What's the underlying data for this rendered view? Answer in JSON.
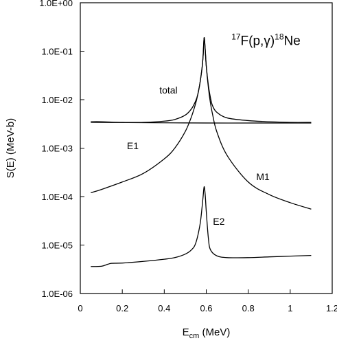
{
  "chart_data": {
    "type": "line",
    "title": {
      "pre": "17",
      "a": "F(p,",
      "gamma": "γ",
      "b": ")",
      "post": "18",
      "c": "Ne"
    },
    "ylabel": "S(E) (MeV-b)",
    "xlabel": {
      "main": "E",
      "sub": "cm",
      "rest": " (MeV)"
    },
    "x_scale": "linear",
    "y_scale": "log",
    "xlim": [
      0,
      1.2
    ],
    "ylim": [
      1e-06,
      1
    ],
    "x_ticks": [
      0,
      0.2,
      0.4,
      0.6,
      0.8,
      1,
      1.2
    ],
    "x_tick_labels": [
      "0",
      "0.2",
      "0.4",
      "0.6",
      "0.8",
      "1",
      "1.2"
    ],
    "y_ticks": [
      1e-06,
      1e-05,
      0.0001,
      0.001,
      0.01,
      0.1,
      1
    ],
    "y_tick_labels": [
      "1.0E-06",
      "1.0E-05",
      "1.0E-04",
      "1.0E-03",
      "1.0E-02",
      "1.0E-01",
      "1.0E+00"
    ],
    "grid": false,
    "series": [
      {
        "name": "total",
        "x": [
          0.05,
          0.1,
          0.2,
          0.3,
          0.4,
          0.45,
          0.5,
          0.53,
          0.55,
          0.56,
          0.57,
          0.58,
          0.585,
          0.59,
          0.595,
          0.6,
          0.61,
          0.62,
          0.63,
          0.65,
          0.7,
          0.8,
          0.9,
          1.0,
          1.1
        ],
        "y": [
          0.0035,
          0.0035,
          0.0034,
          0.0034,
          0.0036,
          0.0039,
          0.0048,
          0.0065,
          0.0095,
          0.013,
          0.022,
          0.045,
          0.08,
          0.19,
          0.11,
          0.05,
          0.02,
          0.011,
          0.0075,
          0.0055,
          0.0042,
          0.0037,
          0.0035,
          0.0034,
          0.0034
        ]
      },
      {
        "name": "E1",
        "x": [
          0.05,
          0.3,
          0.6,
          0.9,
          1.1
        ],
        "y": [
          0.0034,
          0.00335,
          0.0033,
          0.0033,
          0.0033
        ]
      },
      {
        "name": "M1",
        "x": [
          0.05,
          0.1,
          0.2,
          0.3,
          0.4,
          0.45,
          0.5,
          0.53,
          0.55,
          0.56,
          0.57,
          0.58,
          0.585,
          0.59,
          0.595,
          0.6,
          0.61,
          0.62,
          0.63,
          0.65,
          0.7,
          0.8,
          0.9,
          1.0,
          1.1
        ],
        "y": [
          0.00012,
          0.00014,
          0.0002,
          0.0003,
          0.0006,
          0.001,
          0.0022,
          0.0045,
          0.0085,
          0.013,
          0.022,
          0.045,
          0.08,
          0.19,
          0.11,
          0.05,
          0.018,
          0.0085,
          0.005,
          0.0022,
          0.0007,
          0.0002,
          0.00011,
          7.5e-05,
          5.5e-05
        ]
      },
      {
        "name": "E2",
        "x": [
          0.05,
          0.1,
          0.13,
          0.15,
          0.2,
          0.3,
          0.4,
          0.45,
          0.5,
          0.53,
          0.55,
          0.57,
          0.58,
          0.585,
          0.59,
          0.595,
          0.6,
          0.61,
          0.62,
          0.65,
          0.7,
          0.8,
          0.9,
          1.0,
          1.1
        ],
        "y": [
          3.6e-06,
          3.65e-06,
          4e-06,
          4.2e-06,
          4.25e-06,
          4.6e-06,
          5.1e-06,
          5.5e-06,
          6.5e-06,
          8e-06,
          1.1e-05,
          2.6e-05,
          6e-05,
          0.0001,
          0.00016,
          0.00011,
          5e-05,
          1.4e-05,
          8e-06,
          6e-06,
          5.5e-06,
          5.5e-06,
          5.7e-06,
          5.9e-06,
          6.1e-06
        ]
      }
    ]
  }
}
